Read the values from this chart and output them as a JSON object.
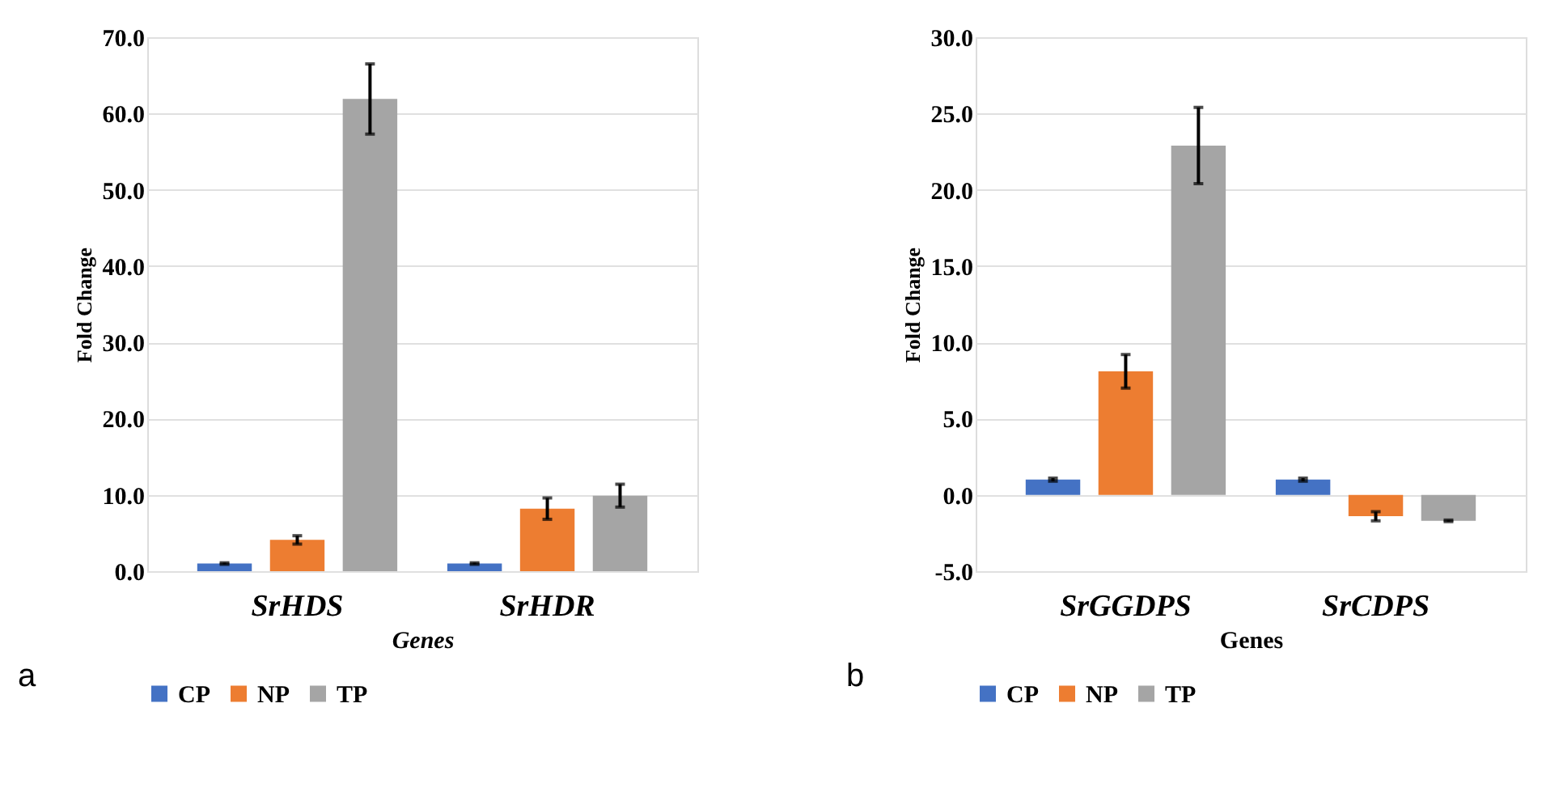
{
  "chart_data": [
    {
      "type": "bar",
      "categories": [
        "SrHDS",
        "SrHDR"
      ],
      "xlabel": "Genes",
      "ylabel": "Fold Change",
      "ylim": [
        0,
        70
      ],
      "yticks": [
        {
          "value": 0,
          "label": "0.0"
        },
        {
          "value": 10,
          "label": "10.0"
        },
        {
          "value": 20,
          "label": "20.0"
        },
        {
          "value": 30,
          "label": "30.0"
        },
        {
          "value": 40,
          "label": "40.0"
        },
        {
          "value": 50,
          "label": "50.0"
        },
        {
          "value": 60,
          "label": "60.0"
        },
        {
          "value": 70,
          "label": "70.0"
        }
      ],
      "grid": "y",
      "legend": "bottom",
      "annotations": [
        "a"
      ],
      "series": [
        {
          "name": "CP",
          "color": "#4472c4",
          "values": [
            1.0,
            1.0
          ],
          "errors": [
            0.1,
            0.1
          ]
        },
        {
          "name": "NP",
          "color": "#ed7d31",
          "values": [
            4.1,
            8.2
          ],
          "errors": [
            0.55,
            1.4
          ]
        },
        {
          "name": "TP",
          "color": "#a5a5a5",
          "values": [
            61.9,
            9.9
          ],
          "errors": [
            4.6,
            1.5
          ]
        }
      ]
    },
    {
      "type": "bar",
      "categories": [
        "SrGGDPS",
        "SrCDPS"
      ],
      "xlabel": "Genes",
      "ylabel": "Fold Change",
      "ylim": [
        -5,
        30
      ],
      "yticks": [
        {
          "value": -5,
          "label": "-5.0"
        },
        {
          "value": 0,
          "label": "0.0"
        },
        {
          "value": 5,
          "label": "5.0"
        },
        {
          "value": 10,
          "label": "10.0"
        },
        {
          "value": 15,
          "label": "15.0"
        },
        {
          "value": 20,
          "label": "20.0"
        },
        {
          "value": 25,
          "label": "25.0"
        },
        {
          "value": 30,
          "label": "30.0"
        }
      ],
      "grid": "y",
      "legend": "bottom",
      "annotations": [
        "b"
      ],
      "series": [
        {
          "name": "CP",
          "color": "#4472c4",
          "values": [
            1.0,
            1.0
          ],
          "errors": [
            0.1,
            0.1
          ]
        },
        {
          "name": "NP",
          "color": "#ed7d31",
          "values": [
            8.1,
            -1.4
          ],
          "errors": [
            1.1,
            0.3
          ]
        },
        {
          "name": "TP",
          "color": "#a5a5a5",
          "values": [
            22.9,
            -1.7
          ],
          "errors": [
            2.5,
            0.05
          ]
        }
      ]
    }
  ]
}
